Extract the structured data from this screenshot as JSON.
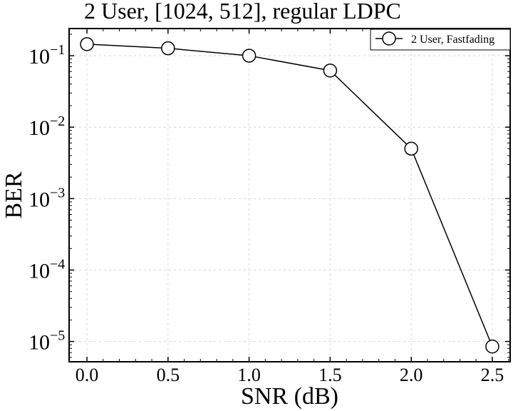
{
  "chart_data": {
    "type": "line",
    "title": "2 User, [1024, 512], regular LDPC",
    "xlabel": "SNR (dB)",
    "ylabel": "BER",
    "x_ticks": [
      "0.0",
      "0.5",
      "1.0",
      "1.5",
      "2.0",
      "2.5"
    ],
    "y_ticks": [
      {
        "base": "10",
        "exp": "−1",
        "value": 0.1
      },
      {
        "base": "10",
        "exp": "−2",
        "value": 0.01
      },
      {
        "base": "10",
        "exp": "−3",
        "value": 0.001
      },
      {
        "base": "10",
        "exp": "−4",
        "value": 0.0001
      },
      {
        "base": "10",
        "exp": "−5",
        "value": 1e-05
      }
    ],
    "xlim": [
      -0.11,
      2.61
    ],
    "ylim": [
      5.2e-06,
      0.24
    ],
    "yscale": "log",
    "grid": true,
    "legend_position": "top-right",
    "series": [
      {
        "name": "2 User, Fastfading",
        "color": "#000000",
        "marker": "open-circle",
        "x": [
          0.0,
          0.5,
          1.0,
          1.5,
          2.0,
          2.5
        ],
        "y": [
          0.145,
          0.127,
          0.1,
          0.062,
          0.005,
          8.5e-06
        ]
      }
    ]
  }
}
